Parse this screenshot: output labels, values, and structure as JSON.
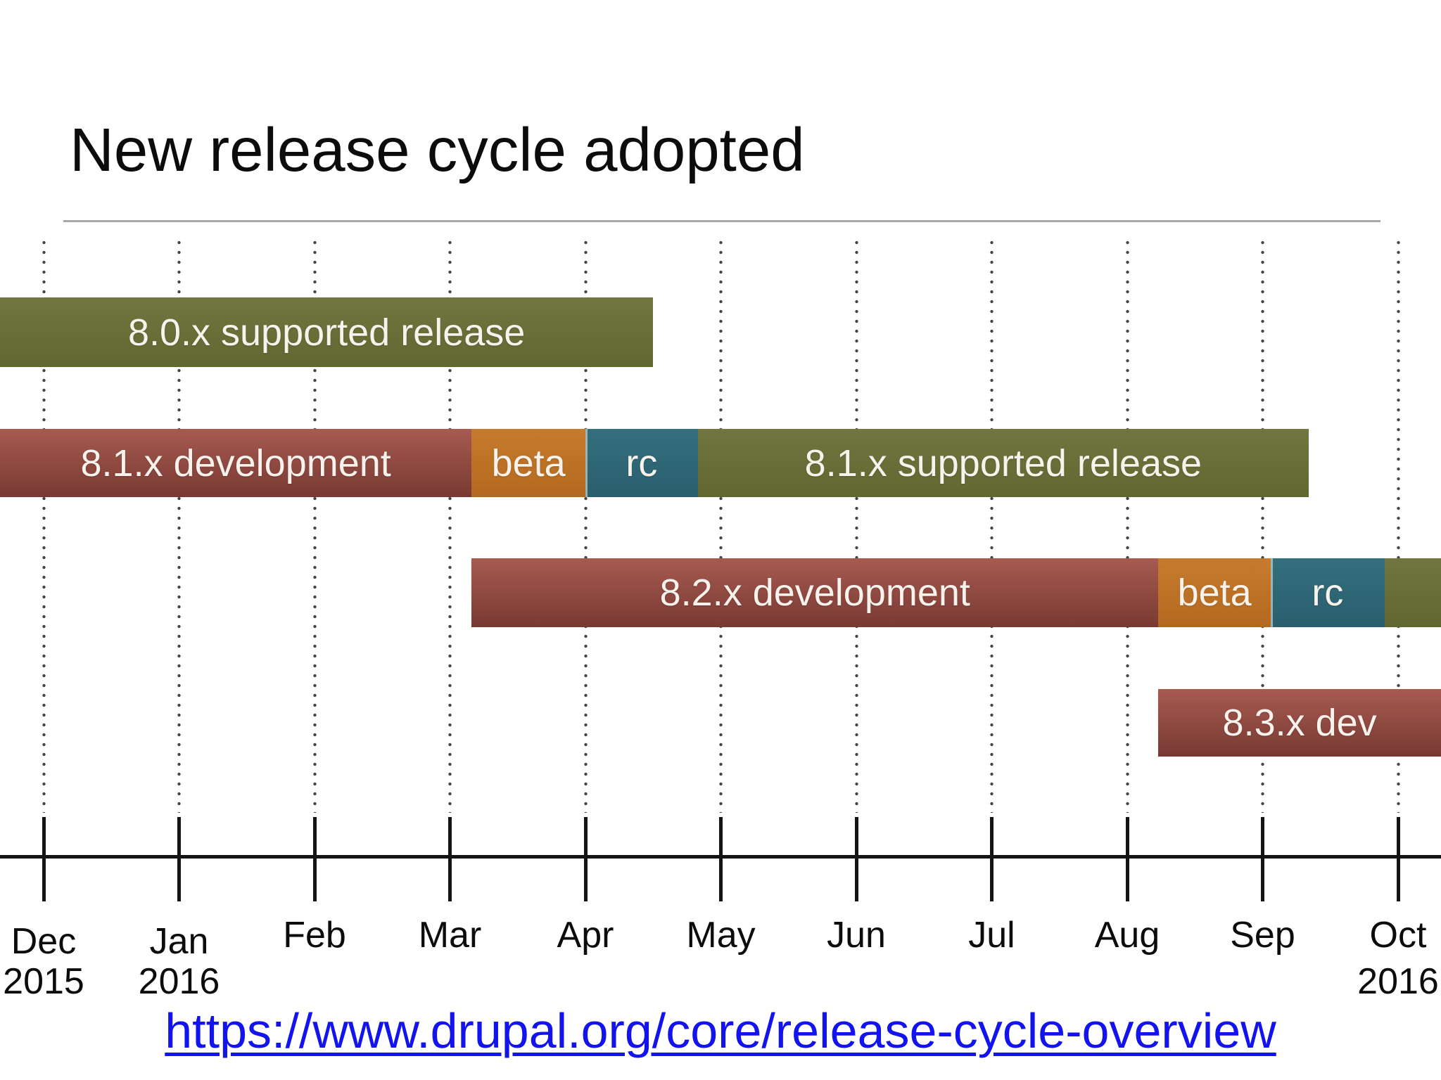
{
  "slide": {
    "title": "New release cycle adopted",
    "link": "https://www.drupal.org/core/release-cycle-overview"
  },
  "colors": {
    "development_top": "#a65b50",
    "development_bottom": "#793933",
    "beta_top": "#c77b2e",
    "beta_bottom": "#b2691f",
    "rc_top": "#346f7e",
    "rc_bottom": "#2a5e6d",
    "supported_top": "#717640",
    "supported_bottom": "#616730",
    "link_blue": "#1313ee",
    "axis_black": "#141414",
    "gridline_gray": "#454545",
    "bar_text": "#f7f3ec"
  },
  "chart_data": {
    "type": "bar",
    "subtype": "gantt-timeline",
    "title": "New release cycle adopted",
    "x_axis": {
      "unit": "month",
      "range": [
        "Dec 2015",
        "Oct 2016"
      ],
      "gridlines": "dotted-vertical",
      "ticks": [
        {
          "month": "Dec",
          "year": "2015",
          "lower": true
        },
        {
          "month": "Jan",
          "year": "2016",
          "lower": true
        },
        {
          "month": "Feb"
        },
        {
          "month": "Mar"
        },
        {
          "month": "Apr"
        },
        {
          "month": "May"
        },
        {
          "month": "Jun"
        },
        {
          "month": "Jul"
        },
        {
          "month": "Aug"
        },
        {
          "month": "Sep"
        },
        {
          "month": "Oct",
          "year": "2016"
        }
      ]
    },
    "rows": [
      {
        "name": "8.0.x",
        "segments": [
          {
            "label": "8.0.x supported release",
            "kind": "supported",
            "start": -0.4,
            "end": 4.5
          }
        ]
      },
      {
        "name": "8.1.x",
        "segments": [
          {
            "label": "8.1.x development",
            "kind": "development",
            "start": -0.4,
            "end": 3.16
          },
          {
            "label": "beta",
            "kind": "beta",
            "start": 3.16,
            "end": 4.0
          },
          {
            "label": "rc",
            "kind": "rc",
            "start": 4.0,
            "end": 4.83,
            "divider": true
          },
          {
            "label": "8.1.x supported release",
            "kind": "supported",
            "start": 4.83,
            "end": 9.34
          }
        ]
      },
      {
        "name": "8.2.x",
        "segments": [
          {
            "label": "8.2.x development",
            "kind": "development",
            "start": 3.16,
            "end": 8.23
          },
          {
            "label": "beta",
            "kind": "beta",
            "start": 8.23,
            "end": 9.06
          },
          {
            "label": "rc",
            "kind": "rc",
            "start": 9.06,
            "end": 9.9,
            "divider": true
          },
          {
            "label": "",
            "kind": "supported",
            "start": 9.9,
            "end": 10.6
          }
        ]
      },
      {
        "name": "8.3.x",
        "segments": [
          {
            "label": "8.3.x dev",
            "kind": "development",
            "start": 8.23,
            "end": 10.6
          }
        ]
      }
    ]
  }
}
